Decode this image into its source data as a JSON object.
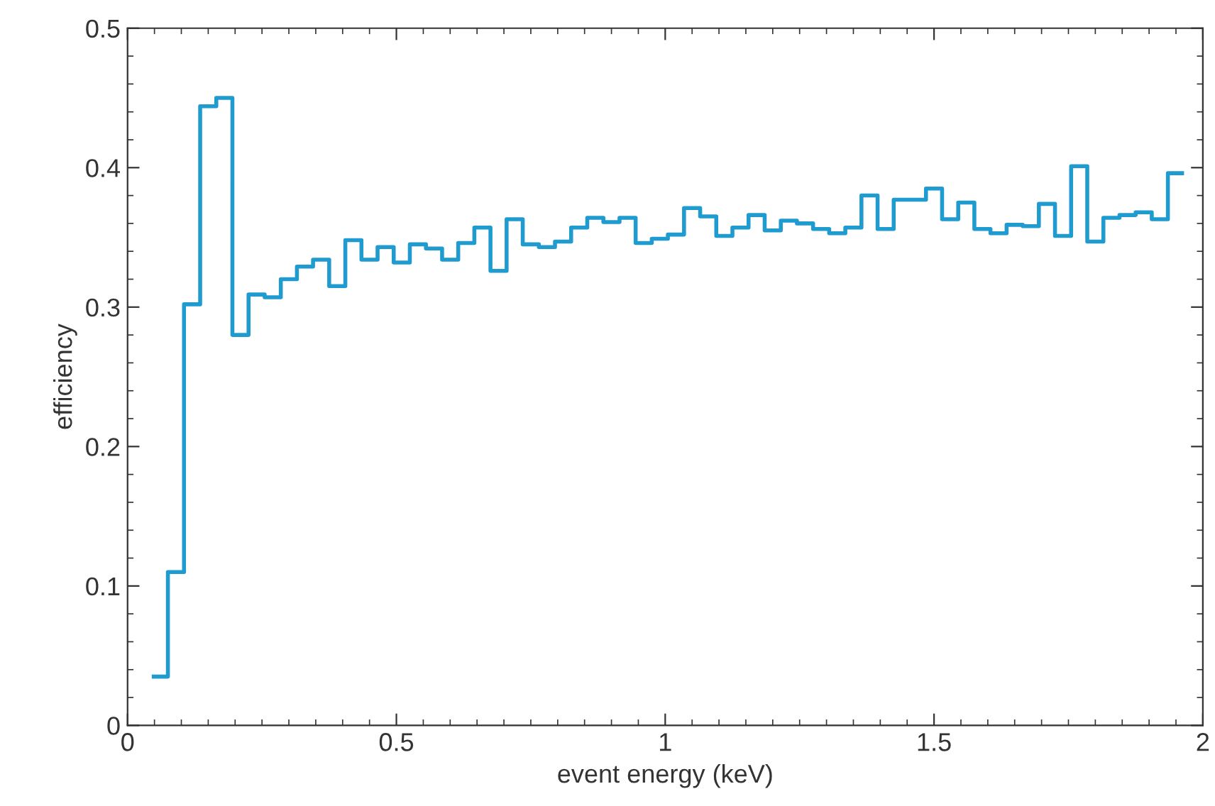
{
  "chart_data": {
    "type": "histogram",
    "xlabel": "event energy (keV)",
    "ylabel": "efficiency",
    "bins": [
      0.045,
      0.075,
      0.105,
      0.135,
      0.165,
      0.195,
      0.225,
      0.255,
      0.285,
      0.315,
      0.345,
      0.375,
      0.405,
      0.435,
      0.465,
      0.495,
      0.525,
      0.555,
      0.585,
      0.615,
      0.645,
      0.675,
      0.705,
      0.735,
      0.765,
      0.795,
      0.825,
      0.855,
      0.885,
      0.915,
      0.945,
      0.975,
      1.005,
      1.035,
      1.065,
      1.095,
      1.125,
      1.155,
      1.185,
      1.215,
      1.245,
      1.275,
      1.305,
      1.335,
      1.365,
      1.395,
      1.425,
      1.455,
      1.485,
      1.515,
      1.545,
      1.575,
      1.605,
      1.635,
      1.665,
      1.695,
      1.725,
      1.755,
      1.785,
      1.815,
      1.845,
      1.875,
      1.905,
      1.935,
      1.965
    ],
    "values": [
      0.035,
      0.11,
      0.302,
      0.444,
      0.45,
      0.28,
      0.309,
      0.307,
      0.32,
      0.329,
      0.334,
      0.315,
      0.348,
      0.334,
      0.343,
      0.332,
      0.345,
      0.342,
      0.334,
      0.346,
      0.357,
      0.326,
      0.363,
      0.345,
      0.343,
      0.347,
      0.357,
      0.364,
      0.361,
      0.364,
      0.346,
      0.349,
      0.352,
      0.371,
      0.365,
      0.351,
      0.357,
      0.366,
      0.355,
      0.362,
      0.36,
      0.356,
      0.353,
      0.357,
      0.38,
      0.356,
      0.377,
      0.377,
      0.385,
      0.363,
      0.375,
      0.356,
      0.353,
      0.359,
      0.358,
      0.374,
      0.351,
      0.401,
      0.347,
      0.364,
      0.366,
      0.368,
      0.363,
      0.396
    ],
    "color": "#1f9bcf",
    "xlim": [
      0,
      2
    ],
    "ylim": [
      0,
      0.5
    ],
    "xticks": [
      0,
      0.5,
      1,
      1.5,
      2
    ],
    "yticks": [
      0,
      0.1,
      0.2,
      0.3,
      0.4,
      0.5
    ],
    "grid": false,
    "legend": false
  }
}
